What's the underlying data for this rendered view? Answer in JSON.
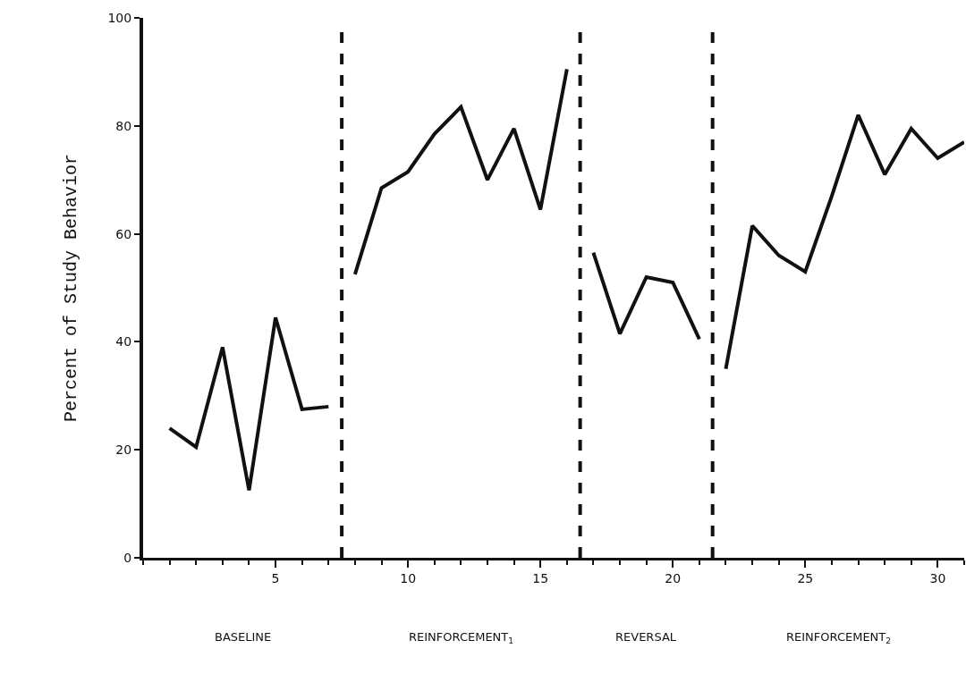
{
  "chart_data": {
    "type": "line",
    "ylabel": "Percent of Study Behavior",
    "series": [
      {
        "color": "#111111",
        "x": [
          1,
          2,
          3,
          4,
          5,
          6,
          7
        ],
        "values": [
          24,
          20.5,
          39,
          12.5,
          44.5,
          27.5,
          28
        ]
      },
      {
        "color": "#111111",
        "x": [
          8,
          9,
          10,
          11,
          12,
          13,
          14,
          15,
          16
        ],
        "values": [
          52.5,
          68.5,
          71.5,
          78.5,
          83.5,
          70,
          79.5,
          64.5,
          90.5
        ]
      },
      {
        "color": "#111111",
        "x": [
          17,
          18,
          19,
          20,
          21
        ],
        "values": [
          56.5,
          41.5,
          52,
          51,
          40.5
        ]
      },
      {
        "color": "#111111",
        "x": [
          22,
          23,
          24,
          25,
          26,
          27,
          28,
          29,
          30,
          31
        ],
        "values": [
          35,
          61.5,
          56,
          53,
          67,
          82,
          71,
          79.5,
          74,
          77
        ]
      }
    ],
    "ref_lines": [
      {
        "axis": "x",
        "value": 7.5,
        "color": "#111111",
        "line_style": "dashed"
      },
      {
        "axis": "x",
        "value": 16.5,
        "color": "#111111",
        "line_style": "dashed"
      },
      {
        "axis": "x",
        "value": 21.5,
        "color": "#111111",
        "line_style": "dashed"
      }
    ],
    "annotations": [
      "BASELINE",
      "REINFORCEMENT$_{1}$",
      "REVERSAL",
      "REINFORCEMENT$_{2}$"
    ],
    "xlim": [
      0,
      31
    ],
    "xticks": [
      5,
      10,
      15,
      20,
      25,
      30
    ],
    "ylim": [
      0,
      100
    ],
    "yticks": [
      0,
      20,
      40,
      60,
      80,
      100
    ],
    "grid": false,
    "marker": "none",
    "line_style": "solid"
  }
}
